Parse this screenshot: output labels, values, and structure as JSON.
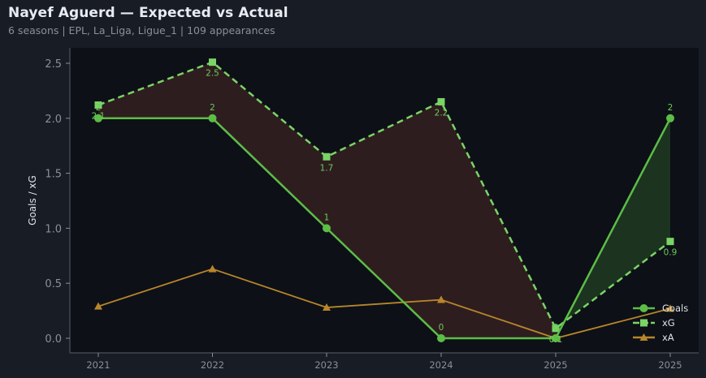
{
  "header": {
    "title": "Nayef Aguerd — Expected vs Actual",
    "subtitle": "6 seasons | EPL, La_Liga, Ligue_1 | 109 appearances"
  },
  "colors": {
    "goals": "#5cbd47",
    "xg": "#7ad466",
    "xa": "#b8862a",
    "overperform_fill": "#1c3320",
    "underperform_fill": "#2e1d1f",
    "page_bg": "#181c24",
    "plot_bg": "#0d1017"
  },
  "chart_data": {
    "type": "line",
    "title": "Nayef Aguerd — Expected vs Actual",
    "subtitle": "6 seasons | EPL, La_Liga, Ligue_1 | 109 appearances",
    "xlabel": "",
    "ylabel": "Goals / xG",
    "categories": [
      "2021",
      "2022",
      "2023",
      "2024",
      "2025",
      "2025"
    ],
    "ylim": [
      -0.13,
      2.64
    ],
    "yticks": [
      "0.0",
      "0.5",
      "1.0",
      "1.5",
      "2.0",
      "2.5"
    ],
    "grid": false,
    "legend_position": "lower right",
    "series": [
      {
        "name": "Goals",
        "values": [
          2,
          2,
          1,
          0,
          0,
          2
        ],
        "labels": [
          "2",
          "2",
          "1",
          "0",
          "0",
          "2"
        ],
        "marker": "circle",
        "style": "solid"
      },
      {
        "name": "xG",
        "values": [
          2.12,
          2.51,
          1.65,
          2.15,
          0.09,
          0.88
        ],
        "labels": [
          "2.1",
          "2.5",
          "1.7",
          "2.2",
          "0.1",
          "0.9"
        ],
        "marker": "square",
        "style": "dashed"
      },
      {
        "name": "xA",
        "values": [
          0.29,
          0.63,
          0.28,
          0.35,
          0.0,
          0.27
        ],
        "marker": "triangle",
        "style": "solid"
      }
    ]
  },
  "legend": {
    "items": [
      {
        "label": "Goals"
      },
      {
        "label": "xG"
      },
      {
        "label": "xA"
      }
    ]
  }
}
